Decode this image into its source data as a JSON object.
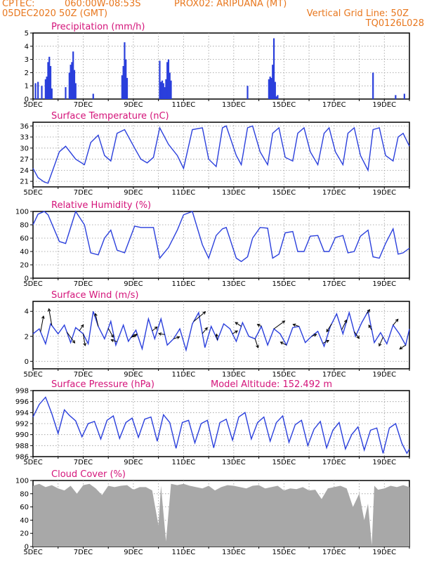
{
  "header": {
    "line1_left": "CPTEC:",
    "coords": "060:00W-08:53S",
    "station": "PROX02: ARIPUANA (MT)",
    "date": "05DEC2020 50Z (GMT)",
    "grid_note": "Vertical Grid Line: 50Z",
    "code": "TQ0126L028"
  },
  "colors": {
    "header": "#e8771e",
    "title": "#d4147a",
    "line": "#2a3fdc",
    "cloud": "#a8a8a8",
    "arrow": "#000000"
  },
  "x_labels": [
    "5DEC",
    "7DEC",
    "9DEC",
    "11DEC",
    "13DEC",
    "15DEC",
    "17DEC",
    "19DEC"
  ],
  "x_range_days": [
    5,
    20
  ],
  "chart_data": [
    {
      "type": "bar",
      "title": "Precipitation (mm/h)",
      "ylim": [
        0,
        5
      ],
      "yticks": [
        "0",
        "1",
        "2",
        "3",
        "4",
        "5"
      ],
      "x": [
        5.1,
        5.2,
        5.35,
        5.5,
        5.55,
        5.6,
        5.65,
        5.7,
        5.75,
        6.3,
        6.45,
        6.5,
        6.55,
        6.6,
        6.65,
        6.7,
        7.4,
        8.55,
        8.6,
        8.65,
        8.7,
        8.75,
        10.05,
        10.1,
        10.15,
        10.2,
        10.25,
        10.3,
        10.35,
        10.4,
        10.45,
        10.5,
        13.55,
        14.4,
        14.45,
        14.5,
        14.55,
        14.6,
        14.65,
        14.7,
        14.75,
        18.55,
        19.45,
        19.8
      ],
      "values": [
        1.2,
        1.3,
        1.0,
        1.5,
        1.7,
        2.8,
        3.2,
        2.5,
        0.8,
        0.9,
        2.0,
        2.6,
        2.8,
        3.6,
        2.2,
        1.2,
        0.4,
        1.8,
        2.5,
        4.3,
        3.0,
        1.6,
        2.9,
        1.3,
        1.4,
        1.2,
        0.9,
        1.5,
        2.8,
        3.0,
        2.0,
        1.4,
        1.0,
        1.5,
        1.7,
        1.6,
        2.6,
        4.6,
        1.3,
        0.2,
        0.3,
        2.0,
        0.3,
        0.4
      ]
    },
    {
      "type": "line",
      "title": "Surface Temperature (nC)",
      "ylim": [
        19.5,
        37
      ],
      "yticks": [
        "21",
        "24",
        "27",
        "30",
        "33",
        "36"
      ],
      "x": [
        5.0,
        5.2,
        5.45,
        5.6,
        6.05,
        6.3,
        6.7,
        7.05,
        7.3,
        7.6,
        7.85,
        8.1,
        8.35,
        8.65,
        9.05,
        9.3,
        9.55,
        9.8,
        10.05,
        10.4,
        10.75,
        11.0,
        11.35,
        11.75,
        12.0,
        12.3,
        12.55,
        12.7,
        13.1,
        13.3,
        13.55,
        13.75,
        14.05,
        14.35,
        14.55,
        14.8,
        15.05,
        15.35,
        15.55,
        15.8,
        16.05,
        16.35,
        16.6,
        16.8,
        17.05,
        17.35,
        17.55,
        17.8,
        18.05,
        18.35,
        18.55,
        18.8,
        19.05,
        19.35,
        19.55,
        19.75,
        20.0
      ],
      "values": [
        24.5,
        22,
        20.8,
        20.5,
        29,
        30.5,
        27,
        25.5,
        31.5,
        33.5,
        28,
        26.5,
        34,
        35,
        30,
        27,
        26,
        27.5,
        35.5,
        31,
        28,
        24.5,
        35,
        35.5,
        27,
        25,
        35.5,
        36,
        28,
        25.5,
        35.5,
        36,
        29,
        25.5,
        34,
        35.5,
        27.5,
        26.5,
        34,
        35.5,
        29,
        25.5,
        34,
        35.5,
        29,
        25.5,
        34,
        35.5,
        28,
        24,
        35,
        35.5,
        28,
        26.5,
        33,
        34,
        30.5
      ]
    },
    {
      "type": "line",
      "title": "Relative Humidity (%)",
      "ylim": [
        0,
        100
      ],
      "yticks": [
        "0",
        "20",
        "40",
        "60",
        "80",
        "100"
      ],
      "x": [
        5.0,
        5.2,
        5.45,
        5.6,
        6.05,
        6.3,
        6.7,
        7.05,
        7.3,
        7.6,
        7.85,
        8.1,
        8.35,
        8.65,
        9.05,
        9.3,
        9.55,
        9.8,
        10.05,
        10.4,
        10.75,
        11.0,
        11.35,
        11.75,
        12.0,
        12.3,
        12.55,
        12.7,
        13.1,
        13.3,
        13.55,
        13.75,
        14.05,
        14.35,
        14.55,
        14.8,
        15.05,
        15.35,
        15.55,
        15.8,
        16.05,
        16.35,
        16.6,
        16.8,
        17.05,
        17.35,
        17.55,
        17.8,
        18.05,
        18.35,
        18.55,
        18.8,
        19.05,
        19.35,
        19.55,
        19.75,
        20.0
      ],
      "values": [
        80,
        96,
        100,
        95,
        55,
        52,
        100,
        80,
        38,
        35,
        60,
        72,
        42,
        38,
        78,
        76,
        76,
        76,
        30,
        46,
        72,
        95,
        100,
        50,
        30,
        64,
        74,
        76,
        30,
        25,
        32,
        60,
        76,
        75,
        30,
        36,
        68,
        70,
        40,
        40,
        63,
        64,
        40,
        40,
        61,
        64,
        38,
        40,
        63,
        72,
        32,
        30,
        52,
        74,
        36,
        38,
        45
      ]
    },
    {
      "type": "line",
      "title": "Surface Wind (m/s)",
      "ylim": [
        -0.6,
        4.8
      ],
      "yticks": [
        "0",
        "2",
        "4"
      ],
      "x": [
        5.0,
        5.25,
        5.5,
        5.7,
        6.0,
        6.25,
        6.5,
        6.7,
        7.0,
        7.2,
        7.4,
        7.6,
        7.85,
        8.1,
        8.3,
        8.6,
        8.8,
        9.1,
        9.35,
        9.6,
        9.85,
        10.1,
        10.35,
        10.6,
        10.85,
        11.1,
        11.35,
        11.6,
        11.85,
        12.1,
        12.35,
        12.6,
        12.85,
        13.1,
        13.35,
        13.6,
        13.85,
        14.1,
        14.35,
        14.6,
        14.85,
        15.1,
        15.35,
        15.6,
        15.85,
        16.1,
        16.35,
        16.6,
        16.85,
        17.1,
        17.35,
        17.6,
        17.85,
        18.1,
        18.35,
        18.6,
        18.85,
        19.1,
        19.35,
        19.6,
        19.85,
        20.0
      ],
      "values": [
        2.2,
        2.6,
        1.4,
        3.0,
        2.2,
        2.9,
        1.5,
        2.7,
        2.2,
        1.4,
        4.0,
        2.8,
        1.8,
        3.2,
        1.3,
        2.9,
        1.6,
        2.5,
        1.0,
        3.4,
        1.8,
        3.4,
        1.3,
        1.8,
        2.6,
        0.9,
        3.0,
        3.9,
        1.1,
        2.8,
        1.7,
        3.0,
        2.6,
        1.6,
        3.1,
        2.0,
        1.8,
        2.8,
        1.3,
        2.6,
        2.2,
        1.3,
        2.7,
        2.8,
        1.5,
        2.0,
        2.4,
        1.2,
        2.8,
        3.8,
        2.2,
        3.9,
        2.0,
        3.1,
        4.0,
        1.5,
        2.3,
        1.4,
        2.9,
        2.2,
        1.3,
        2.6
      ],
      "arrows": [
        {
          "x": 5.3,
          "u": 0.3,
          "v": 1.6
        },
        {
          "x": 5.75,
          "u": -0.3,
          "v": 1.7
        },
        {
          "x": 6.35,
          "u": 0.8,
          "v": -1.1
        },
        {
          "x": 6.85,
          "u": 0.4,
          "v": 0.6
        },
        {
          "x": 7.0,
          "u": 0.2,
          "v": -1.2
        },
        {
          "x": 7.6,
          "u": -0.3,
          "v": 1.3
        },
        {
          "x": 8.0,
          "u": 0.5,
          "v": -0.9
        },
        {
          "x": 8.35,
          "u": -0.6,
          "v": 0.2
        },
        {
          "x": 8.9,
          "u": 0.6,
          "v": 0.3
        },
        {
          "x": 9.15,
          "u": -0.5,
          "v": -0.3
        },
        {
          "x": 9.75,
          "u": 0.5,
          "v": 0.4
        },
        {
          "x": 10.25,
          "u": -0.6,
          "v": 0.1
        },
        {
          "x": 10.6,
          "u": 0.6,
          "v": 0.2
        },
        {
          "x": 11.4,
          "u": 1.2,
          "v": 1.0
        },
        {
          "x": 11.75,
          "u": 0.5,
          "v": 0.6
        },
        {
          "x": 12.35,
          "u": -0.1,
          "v": 0.6
        },
        {
          "x": 12.95,
          "u": 0.5,
          "v": 0.3
        },
        {
          "x": 13.3,
          "u": -0.6,
          "v": 0.4
        },
        {
          "x": 13.85,
          "u": 0.3,
          "v": -0.9
        },
        {
          "x": 14.1,
          "u": -0.4,
          "v": 0.2
        },
        {
          "x": 14.6,
          "u": 1.1,
          "v": 0.8
        },
        {
          "x": 15.1,
          "u": -0.6,
          "v": 0.3
        },
        {
          "x": 15.6,
          "u": -0.6,
          "v": 0.2
        },
        {
          "x": 16.1,
          "u": 0.5,
          "v": 0.2
        },
        {
          "x": 16.55,
          "u": 0.6,
          "v": 0.3
        },
        {
          "x": 16.9,
          "u": -0.5,
          "v": -0.8
        },
        {
          "x": 17.3,
          "u": 0.5,
          "v": 1.0
        },
        {
          "x": 17.8,
          "u": 0.5,
          "v": -0.7
        },
        {
          "x": 18.3,
          "u": 0.3,
          "v": 0.4
        },
        {
          "x": 18.5,
          "u": -0.3,
          "v": 0.5
        },
        {
          "x": 18.95,
          "u": -0.4,
          "v": -0.9
        },
        {
          "x": 19.35,
          "u": 0.5,
          "v": 0.6
        },
        {
          "x": 19.85,
          "u": -0.6,
          "v": -0.4
        }
      ]
    },
    {
      "type": "line",
      "title": "Surface Pressure (hPa)",
      "annotation": "Model Altitude: 152.492 m",
      "ylim": [
        986,
        998
      ],
      "yticks": [
        "986",
        "988",
        "990",
        "992",
        "994",
        "996",
        "998"
      ],
      "x": [
        5.0,
        5.25,
        5.5,
        5.75,
        6.0,
        6.25,
        6.45,
        6.7,
        6.95,
        7.2,
        7.45,
        7.7,
        7.95,
        8.2,
        8.45,
        8.7,
        8.95,
        9.2,
        9.45,
        9.7,
        9.95,
        10.2,
        10.45,
        10.7,
        10.95,
        11.2,
        11.45,
        11.7,
        11.95,
        12.2,
        12.45,
        12.7,
        12.95,
        13.2,
        13.45,
        13.7,
        13.95,
        14.2,
        14.45,
        14.7,
        14.95,
        15.2,
        15.45,
        15.7,
        15.95,
        16.2,
        16.45,
        16.7,
        16.95,
        17.2,
        17.45,
        17.7,
        17.95,
        18.2,
        18.45,
        18.7,
        18.95,
        19.2,
        19.45,
        19.7,
        19.9,
        20.0
      ],
      "values": [
        993.2,
        995.5,
        996.8,
        993.8,
        990.2,
        994.5,
        993.5,
        992.5,
        989.6,
        992,
        992.4,
        989.2,
        992.6,
        993.4,
        989.3,
        992.2,
        993,
        989.5,
        992.8,
        993.2,
        988.8,
        993.6,
        992.2,
        987.5,
        992.2,
        992.6,
        988.5,
        992,
        992.6,
        987.6,
        992.2,
        992.8,
        989,
        993.2,
        994,
        989.2,
        992.2,
        993.2,
        988.8,
        992.2,
        993.4,
        988.6,
        991.8,
        992.6,
        988,
        991,
        992.4,
        987.6,
        990.8,
        992.2,
        987.4,
        990,
        991.4,
        987.2,
        990.8,
        991.2,
        986.6,
        991.2,
        992,
        988.4,
        986.6,
        987.4
      ]
    },
    {
      "type": "bar",
      "title": "Cloud Cover (%)",
      "ylim": [
        0,
        100
      ],
      "yticks": [
        "0",
        "20",
        "40",
        "60",
        "80",
        "100"
      ],
      "x": [
        5.0,
        5.25,
        5.5,
        5.75,
        6.0,
        6.25,
        6.5,
        6.75,
        7.0,
        7.25,
        7.5,
        7.75,
        8.0,
        8.25,
        8.5,
        8.75,
        9.0,
        9.25,
        9.5,
        9.75,
        10.0,
        10.1,
        10.3,
        10.5,
        10.75,
        11.0,
        11.25,
        11.5,
        11.75,
        12.0,
        12.25,
        12.5,
        12.75,
        13.0,
        13.25,
        13.5,
        13.75,
        14.0,
        14.25,
        14.5,
        14.75,
        15.0,
        15.25,
        15.5,
        15.75,
        16.0,
        16.25,
        16.5,
        16.75,
        17.0,
        17.25,
        17.5,
        17.75,
        18.0,
        18.2,
        18.35,
        18.5,
        18.6,
        18.75,
        19.0,
        19.25,
        19.5,
        19.75,
        20.0
      ],
      "values": [
        92,
        95,
        90,
        93,
        88,
        85,
        92,
        80,
        93,
        95,
        88,
        78,
        92,
        90,
        92,
        93,
        86,
        90,
        90,
        85,
        32,
        92,
        8,
        95,
        93,
        95,
        92,
        90,
        88,
        92,
        85,
        90,
        93,
        92,
        90,
        88,
        92,
        93,
        88,
        90,
        92,
        85,
        88,
        87,
        90,
        85,
        86,
        72,
        88,
        90,
        92,
        88,
        60,
        80,
        40,
        65,
        2,
        92,
        86,
        88,
        92,
        90,
        93,
        90
      ]
    }
  ]
}
